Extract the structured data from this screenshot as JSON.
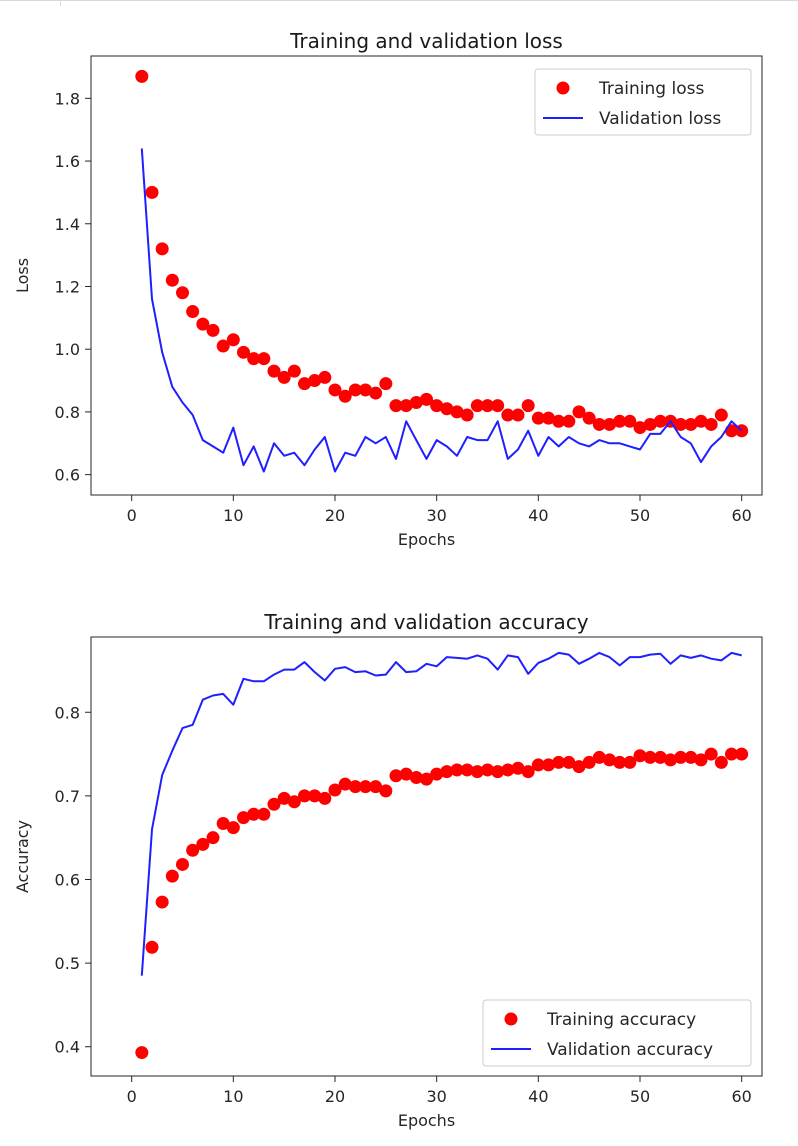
{
  "chart_data": [
    {
      "type": "line",
      "title": "Training and validation loss",
      "xlabel": "Epochs",
      "ylabel": "Loss",
      "xlim": [
        -4,
        62
      ],
      "ylim": [
        0.535,
        1.935
      ],
      "xticks": [
        0,
        10,
        20,
        30,
        40,
        50,
        60
      ],
      "yticks": [
        0.6,
        0.8,
        1.0,
        1.2,
        1.4,
        1.6,
        1.8
      ],
      "ytick_labels": [
        "0.6",
        "0.8",
        "1.0",
        "1.2",
        "1.4",
        "1.6",
        "1.8"
      ],
      "legend_position": "top-right",
      "grid": false,
      "x": [
        1,
        2,
        3,
        4,
        5,
        6,
        7,
        8,
        9,
        10,
        11,
        12,
        13,
        14,
        15,
        16,
        17,
        18,
        19,
        20,
        21,
        22,
        23,
        24,
        25,
        26,
        27,
        28,
        29,
        30,
        31,
        32,
        33,
        34,
        35,
        36,
        37,
        38,
        39,
        40,
        41,
        42,
        43,
        44,
        45,
        46,
        47,
        48,
        49,
        50,
        51,
        52,
        53,
        54,
        55,
        56,
        57,
        58,
        59,
        60
      ],
      "series": [
        {
          "name": "Training loss",
          "style": "points",
          "color": "#ff0000",
          "values": [
            1.87,
            1.5,
            1.32,
            1.22,
            1.18,
            1.12,
            1.08,
            1.06,
            1.01,
            1.03,
            0.99,
            0.97,
            0.97,
            0.93,
            0.91,
            0.93,
            0.89,
            0.9,
            0.91,
            0.87,
            0.85,
            0.87,
            0.87,
            0.86,
            0.89,
            0.82,
            0.82,
            0.83,
            0.84,
            0.82,
            0.81,
            0.8,
            0.79,
            0.82,
            0.82,
            0.82,
            0.79,
            0.79,
            0.82,
            0.78,
            0.78,
            0.77,
            0.77,
            0.8,
            0.78,
            0.76,
            0.76,
            0.77,
            0.77,
            0.75,
            0.76,
            0.77,
            0.77,
            0.76,
            0.76,
            0.77,
            0.76,
            0.79,
            0.74,
            0.74
          ]
        },
        {
          "name": "Validation loss",
          "style": "line",
          "color": "#1f1fff",
          "values": [
            1.64,
            1.16,
            0.99,
            0.88,
            0.83,
            0.79,
            0.71,
            0.69,
            0.67,
            0.75,
            0.63,
            0.69,
            0.61,
            0.7,
            0.66,
            0.67,
            0.63,
            0.68,
            0.72,
            0.61,
            0.67,
            0.66,
            0.72,
            0.7,
            0.72,
            0.65,
            0.77,
            0.71,
            0.65,
            0.71,
            0.69,
            0.66,
            0.72,
            0.71,
            0.71,
            0.77,
            0.65,
            0.68,
            0.74,
            0.66,
            0.72,
            0.69,
            0.72,
            0.7,
            0.69,
            0.71,
            0.7,
            0.7,
            0.69,
            0.68,
            0.73,
            0.73,
            0.77,
            0.72,
            0.7,
            0.64,
            0.69,
            0.72,
            0.77,
            0.74
          ]
        }
      ]
    },
    {
      "type": "line",
      "title": "Training and validation accuracy",
      "xlabel": "Epochs",
      "ylabel": "Accuracy",
      "xlim": [
        -4,
        62
      ],
      "ylim": [
        0.365,
        0.89
      ],
      "xticks": [
        0,
        10,
        20,
        30,
        40,
        50,
        60
      ],
      "yticks": [
        0.4,
        0.5,
        0.6,
        0.7,
        0.8
      ],
      "ytick_labels": [
        "0.4",
        "0.5",
        "0.6",
        "0.7",
        "0.8"
      ],
      "legend_position": "bottom-right",
      "grid": false,
      "x": [
        1,
        2,
        3,
        4,
        5,
        6,
        7,
        8,
        9,
        10,
        11,
        12,
        13,
        14,
        15,
        16,
        17,
        18,
        19,
        20,
        21,
        22,
        23,
        24,
        25,
        26,
        27,
        28,
        29,
        30,
        31,
        32,
        33,
        34,
        35,
        36,
        37,
        38,
        39,
        40,
        41,
        42,
        43,
        44,
        45,
        46,
        47,
        48,
        49,
        50,
        51,
        52,
        53,
        54,
        55,
        56,
        57,
        58,
        59,
        60
      ],
      "series": [
        {
          "name": "Training accuracy",
          "style": "points",
          "color": "#ff0000",
          "values": [
            0.393,
            0.519,
            0.573,
            0.604,
            0.618,
            0.635,
            0.642,
            0.65,
            0.667,
            0.662,
            0.674,
            0.678,
            0.678,
            0.69,
            0.697,
            0.693,
            0.7,
            0.7,
            0.697,
            0.707,
            0.714,
            0.711,
            0.711,
            0.711,
            0.706,
            0.724,
            0.726,
            0.722,
            0.72,
            0.726,
            0.729,
            0.731,
            0.731,
            0.729,
            0.731,
            0.729,
            0.731,
            0.733,
            0.729,
            0.737,
            0.737,
            0.74,
            0.74,
            0.735,
            0.74,
            0.746,
            0.743,
            0.74,
            0.74,
            0.748,
            0.746,
            0.746,
            0.743,
            0.746,
            0.746,
            0.743,
            0.75,
            0.74,
            0.75,
            0.75
          ]
        },
        {
          "name": "Validation accuracy",
          "style": "line",
          "color": "#1f1fff",
          "values": [
            0.485,
            0.66,
            0.725,
            0.754,
            0.781,
            0.785,
            0.815,
            0.82,
            0.822,
            0.809,
            0.84,
            0.837,
            0.837,
            0.845,
            0.851,
            0.851,
            0.86,
            0.848,
            0.838,
            0.852,
            0.854,
            0.848,
            0.849,
            0.844,
            0.845,
            0.86,
            0.848,
            0.849,
            0.858,
            0.855,
            0.866,
            0.865,
            0.864,
            0.868,
            0.864,
            0.851,
            0.868,
            0.866,
            0.846,
            0.859,
            0.864,
            0.871,
            0.869,
            0.858,
            0.864,
            0.871,
            0.866,
            0.856,
            0.866,
            0.866,
            0.869,
            0.87,
            0.858,
            0.868,
            0.865,
            0.868,
            0.864,
            0.862,
            0.871,
            0.868
          ]
        }
      ]
    }
  ]
}
